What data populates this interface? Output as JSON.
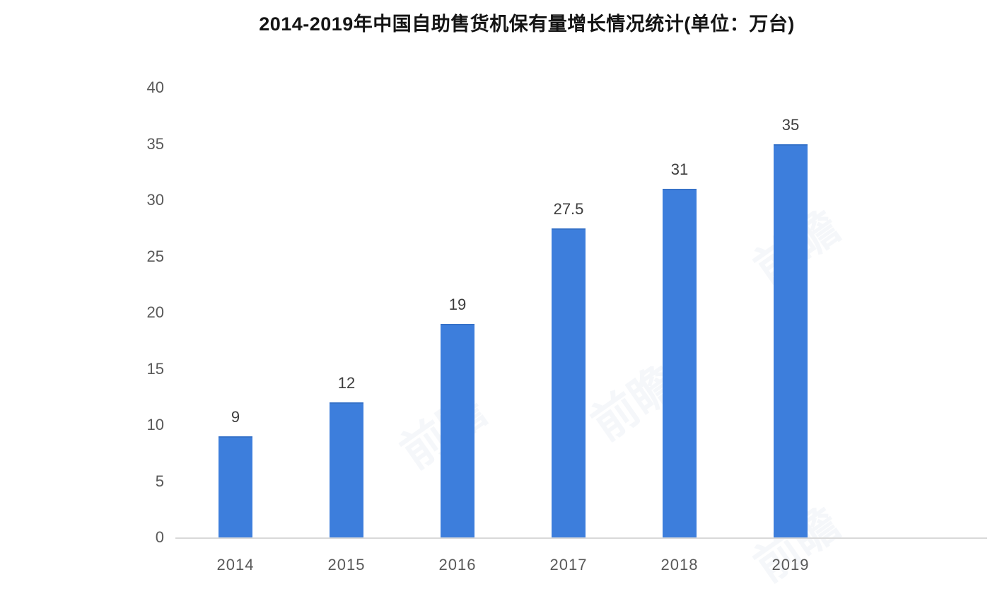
{
  "chart_data": {
    "type": "bar",
    "title": "2014-2019年中国自助售货机保有量增长情况统计(单位：万台)",
    "categories": [
      "2014",
      "2015",
      "2016",
      "2017",
      "2018",
      "2019"
    ],
    "values": [
      9,
      12,
      19,
      27.5,
      31,
      35
    ],
    "value_labels": [
      "9",
      "12",
      "19",
      "27.5",
      "31",
      "35"
    ],
    "y_ticks": [
      0,
      5,
      10,
      15,
      20,
      25,
      30,
      35,
      40
    ],
    "ylim": [
      0,
      40
    ],
    "xlabel": "",
    "ylabel": "",
    "grid": "off",
    "legend_position": "none",
    "bar_color": "#3d7edc",
    "axis_label_color": "#595959",
    "value_label_color": "#3d3d3d",
    "background_color": "#ffffff",
    "watermark_text": "前瞻"
  }
}
